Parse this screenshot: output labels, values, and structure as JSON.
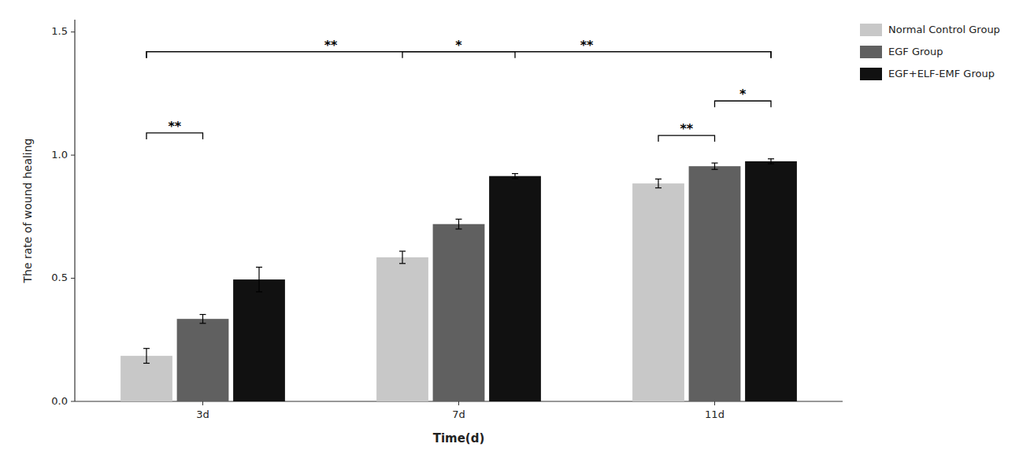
{
  "chart_data": {
    "type": "bar",
    "xlabel": "Time(d)",
    "ylabel": "The rate of wound healing",
    "categories": [
      "3d",
      "7d",
      "11d"
    ],
    "series": [
      {
        "name": "Normal Control Group",
        "color": "#c8c8c8",
        "values": [
          0.185,
          0.585,
          0.885
        ],
        "errors": [
          0.03,
          0.025,
          0.018
        ]
      },
      {
        "name": "EGF Group",
        "color": "#606060",
        "values": [
          0.335,
          0.72,
          0.955
        ],
        "errors": [
          0.018,
          0.02,
          0.013
        ]
      },
      {
        "name": "EGF+ELF-EMF Group",
        "color": "#111111",
        "values": [
          0.495,
          0.915,
          0.975
        ],
        "errors": [
          0.05,
          0.01,
          0.01
        ]
      }
    ],
    "ylim": [
      0.0,
      1.55
    ],
    "yticks": [
      {
        "value": 0,
        "label": "0.0"
      },
      0.5,
      {
        "value": 1,
        "label": "1.0"
      },
      1.5
    ],
    "grid": false,
    "legend": "right",
    "annotations": [
      {
        "text": "*",
        "y": 1.42,
        "start": [
          0,
          0
        ],
        "end": [
          2,
          2
        ]
      },
      {
        "text": "**",
        "y": 1.42,
        "start": [
          0,
          0
        ],
        "end": [
          1,
          2
        ]
      },
      {
        "text": "**",
        "y": 1.42,
        "start": [
          1,
          0
        ],
        "end": [
          2,
          2
        ]
      },
      {
        "text": "**",
        "y": 1.09,
        "start": [
          0,
          0
        ],
        "end": [
          0,
          1
        ]
      },
      {
        "text": "**",
        "y": 1.08,
        "start": [
          2,
          0
        ],
        "end": [
          2,
          1
        ]
      },
      {
        "text": "*",
        "y": 1.22,
        "start": [
          2,
          1
        ],
        "end": [
          2,
          2
        ]
      }
    ]
  }
}
